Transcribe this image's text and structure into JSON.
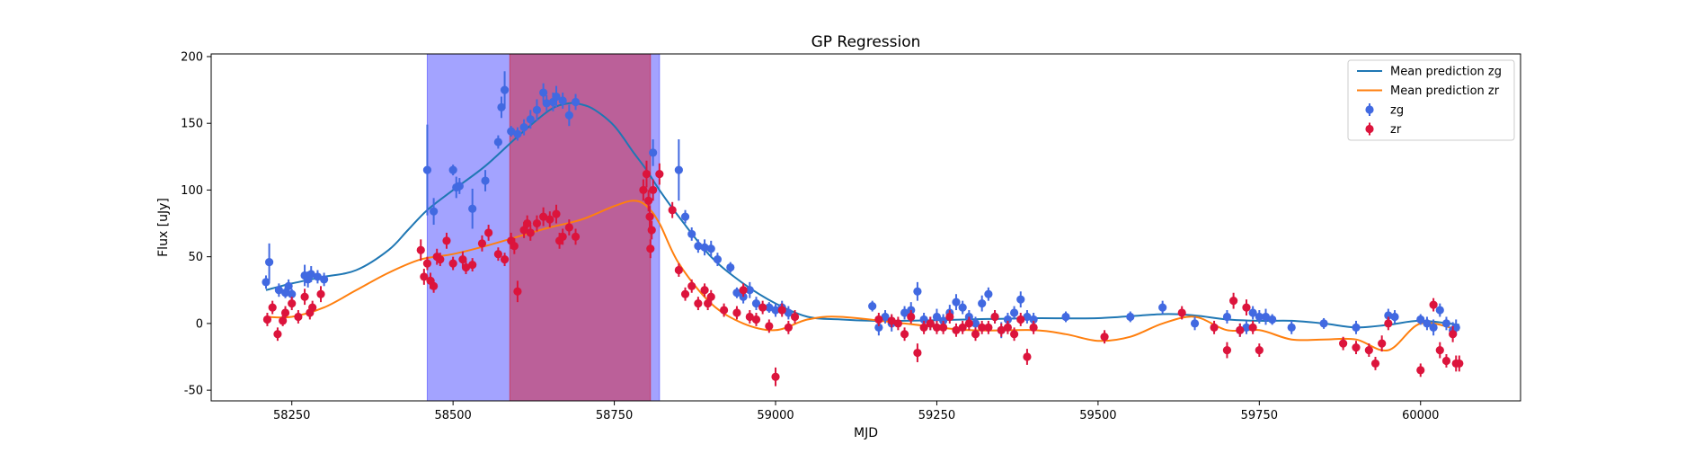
{
  "chart_data": {
    "type": "scatter",
    "title": "GP Regression",
    "xlabel": "MJD",
    "ylabel": "Flux [uJy]",
    "xlim": [
      58125,
      60155
    ],
    "ylim": [
      -58,
      202
    ],
    "xticks": [
      58250,
      58500,
      58750,
      59000,
      59250,
      59500,
      59750,
      60000
    ],
    "yticks": [
      -50,
      0,
      50,
      100,
      150,
      200
    ],
    "legend_position": "top-right",
    "grid": false,
    "colors": {
      "zg_line": "#1f77b4",
      "zr_line": "#ff7f0e",
      "zg_points": "#4169e1",
      "zr_points": "#dc143c",
      "blue_band": "#6666ff",
      "red_band": "#cc3355"
    },
    "shaded_regions": [
      {
        "x0": 58460,
        "x1": 58820,
        "color": "#6666ff",
        "opacity": 0.6
      },
      {
        "x0": 58588,
        "x1": 58806,
        "color": "#cc3355",
        "opacity": 0.6
      }
    ],
    "series": [
      {
        "name": "Mean prediction zg",
        "kind": "line",
        "color": "#1f77b4",
        "x": [
          58210,
          58250,
          58300,
          58350,
          58400,
          58430,
          58460,
          58500,
          58550,
          58600,
          58650,
          58680,
          58700,
          58720,
          58750,
          58780,
          58800,
          58820,
          58850,
          58900,
          58950,
          59000,
          59050,
          59100,
          59150,
          59200,
          59300,
          59400,
          59500,
          59600,
          59650,
          59700,
          59750,
          59800,
          59850,
          59900,
          59950,
          60000,
          60060
        ],
        "y": [
          25,
          30,
          35,
          40,
          55,
          70,
          85,
          100,
          118,
          140,
          160,
          165,
          164,
          160,
          148,
          128,
          115,
          100,
          80,
          50,
          30,
          15,
          5,
          3,
          2,
          2,
          3,
          4,
          4,
          7,
          6,
          3,
          2,
          2,
          0,
          -3,
          -1,
          2,
          -1
        ]
      },
      {
        "name": "Mean prediction zr",
        "kind": "line",
        "color": "#ff7f0e",
        "x": [
          58210,
          58250,
          58300,
          58350,
          58400,
          58450,
          58500,
          58550,
          58600,
          58650,
          58700,
          58750,
          58780,
          58800,
          58820,
          58850,
          58900,
          58950,
          59000,
          59050,
          59100,
          59200,
          59300,
          59400,
          59450,
          59500,
          59550,
          59600,
          59650,
          59700,
          59750,
          59800,
          59850,
          59900,
          59950,
          60000,
          60060
        ],
        "y": [
          5,
          5,
          12,
          25,
          38,
          48,
          52,
          58,
          65,
          72,
          78,
          88,
          92,
          88,
          75,
          45,
          15,
          0,
          -5,
          3,
          5,
          0,
          -5,
          -5,
          -8,
          -13,
          -10,
          0,
          5,
          -5,
          -5,
          -12,
          -12,
          -12,
          -20,
          0,
          -5
        ]
      },
      {
        "name": "zg",
        "kind": "errorbar",
        "color": "#4169e1",
        "x": [
          58210,
          58215,
          58230,
          58240,
          58245,
          58250,
          58270,
          58275,
          58280,
          58290,
          58300,
          58460,
          58470,
          58500,
          58505,
          58510,
          58530,
          58550,
          58570,
          58575,
          58580,
          58590,
          58600,
          58610,
          58620,
          58630,
          58640,
          58645,
          58655,
          58660,
          58670,
          58680,
          58690,
          58810,
          58850,
          58860,
          58870,
          58880,
          58890,
          58900,
          58910,
          58930,
          58940,
          58950,
          58960,
          58970,
          58990,
          59000,
          59010,
          59020,
          59150,
          59160,
          59170,
          59180,
          59200,
          59210,
          59220,
          59230,
          59240,
          59250,
          59260,
          59270,
          59280,
          59290,
          59300,
          59310,
          59320,
          59330,
          59340,
          59350,
          59360,
          59370,
          59380,
          59390,
          59400,
          59450,
          59550,
          59600,
          59650,
          59700,
          59720,
          59730,
          59740,
          59750,
          59760,
          59770,
          59800,
          59850,
          59900,
          59950,
          59960,
          60000,
          60010,
          60020,
          60030,
          60040,
          60050,
          60055
        ],
        "y": [
          31,
          46,
          25,
          23,
          28,
          22,
          36,
          33,
          37,
          35,
          33,
          115,
          84,
          115,
          102,
          103,
          86,
          107,
          136,
          162,
          175,
          144,
          142,
          147,
          153,
          160,
          173,
          165,
          166,
          170,
          167,
          156,
          166,
          128,
          115,
          80,
          67,
          58,
          57,
          56,
          48,
          42,
          23,
          20,
          25,
          15,
          12,
          10,
          12,
          8,
          13,
          -3,
          5,
          0,
          8,
          10,
          24,
          3,
          0,
          5,
          2,
          8,
          16,
          12,
          5,
          0,
          15,
          22,
          5,
          -5,
          3,
          8,
          18,
          5,
          3,
          5,
          5,
          12,
          0,
          5,
          -5,
          -3,
          8,
          5,
          5,
          3,
          -3,
          0,
          -3,
          6,
          5,
          3,
          0,
          -3,
          10,
          0,
          -5,
          -3
        ],
        "yerr": [
          5,
          14,
          5,
          4,
          5,
          4,
          8,
          6,
          6,
          5,
          5,
          34,
          10,
          4,
          8,
          6,
          15,
          8,
          5,
          8,
          14,
          4,
          5,
          6,
          7,
          8,
          7,
          6,
          7,
          8,
          6,
          8,
          6,
          10,
          23,
          5,
          5,
          5,
          6,
          6,
          5,
          4,
          4,
          5,
          6,
          5,
          4,
          5,
          5,
          5,
          4,
          6,
          5,
          6,
          5,
          6,
          7,
          5,
          5,
          6,
          5,
          6,
          6,
          5,
          5,
          5,
          6,
          5,
          5,
          6,
          5,
          5,
          6,
          5,
          5,
          4,
          4,
          5,
          5,
          5,
          5,
          5,
          5,
          5,
          6,
          4,
          5,
          4,
          5,
          5,
          5,
          4,
          5,
          6,
          5,
          5,
          6,
          6
        ]
      },
      {
        "name": "zr",
        "kind": "errorbar",
        "color": "#dc143c",
        "x": [
          58212,
          58220,
          58228,
          58236,
          58240,
          58250,
          58260,
          58270,
          58278,
          58282,
          58295,
          58450,
          58455,
          58460,
          58465,
          58470,
          58475,
          58480,
          58490,
          58500,
          58515,
          58520,
          58530,
          58545,
          58555,
          58570,
          58580,
          58590,
          58595,
          58600,
          58610,
          58615,
          58620,
          58630,
          58640,
          58650,
          58660,
          58665,
          58670,
          58680,
          58690,
          58795,
          58800,
          58803,
          58805,
          58806,
          58808,
          58810,
          58820,
          58840,
          58850,
          58860,
          58870,
          58880,
          58890,
          58895,
          58900,
          58920,
          58940,
          58950,
          58960,
          58970,
          58980,
          58990,
          59000,
          59010,
          59020,
          59030,
          59160,
          59180,
          59190,
          59200,
          59210,
          59220,
          59230,
          59240,
          59250,
          59260,
          59270,
          59280,
          59290,
          59300,
          59310,
          59320,
          59330,
          59340,
          59350,
          59360,
          59370,
          59380,
          59390,
          59400,
          59510,
          59630,
          59680,
          59700,
          59710,
          59720,
          59730,
          59740,
          59750,
          59880,
          59900,
          59920,
          59930,
          59940,
          59950,
          60000,
          60020,
          60030,
          60040,
          60050,
          60055,
          60060
        ],
        "y": [
          3,
          12,
          -8,
          2,
          8,
          15,
          5,
          20,
          8,
          12,
          22,
          55,
          35,
          45,
          32,
          28,
          50,
          48,
          62,
          45,
          48,
          42,
          44,
          60,
          68,
          52,
          48,
          62,
          58,
          24,
          70,
          75,
          68,
          75,
          80,
          78,
          82,
          62,
          65,
          72,
          65,
          100,
          112,
          92,
          80,
          56,
          70,
          100,
          112,
          85,
          40,
          22,
          28,
          15,
          25,
          15,
          20,
          10,
          8,
          25,
          5,
          3,
          12,
          -2,
          -40,
          10,
          -3,
          5,
          3,
          2,
          0,
          -8,
          5,
          -22,
          -3,
          0,
          -3,
          -3,
          5,
          -5,
          -3,
          0,
          -8,
          -3,
          -3,
          5,
          -5,
          -3,
          -8,
          3,
          -25,
          -3,
          -10,
          8,
          -3,
          -20,
          17,
          -5,
          12,
          -3,
          -20,
          -15,
          -18,
          -20,
          -30,
          -15,
          0,
          -35,
          14,
          -20,
          -28,
          -8,
          -30,
          -30
        ],
        "yerr": [
          5,
          5,
          5,
          4,
          5,
          5,
          5,
          6,
          5,
          5,
          6,
          8,
          6,
          5,
          6,
          5,
          6,
          5,
          6,
          5,
          6,
          5,
          5,
          6,
          6,
          5,
          5,
          6,
          6,
          8,
          6,
          6,
          6,
          6,
          7,
          6,
          7,
          6,
          6,
          6,
          6,
          8,
          10,
          8,
          8,
          7,
          7,
          8,
          8,
          6,
          5,
          5,
          5,
          5,
          5,
          5,
          5,
          5,
          5,
          5,
          5,
          5,
          5,
          5,
          7,
          5,
          5,
          5,
          5,
          5,
          5,
          5,
          5,
          7,
          5,
          5,
          5,
          5,
          5,
          5,
          5,
          5,
          5,
          5,
          5,
          5,
          5,
          5,
          5,
          5,
          6,
          5,
          5,
          5,
          5,
          6,
          6,
          5,
          6,
          5,
          5,
          5,
          5,
          5,
          5,
          6,
          5,
          5,
          5,
          6,
          5,
          6,
          6,
          6
        ]
      }
    ],
    "legend": [
      {
        "label": "Mean prediction zg",
        "marker": "line",
        "color": "#1f77b4"
      },
      {
        "label": "Mean prediction zr",
        "marker": "line",
        "color": "#ff7f0e"
      },
      {
        "label": "zg",
        "marker": "errorbar",
        "color": "#4169e1"
      },
      {
        "label": "zr",
        "marker": "errorbar",
        "color": "#dc143c"
      }
    ]
  }
}
